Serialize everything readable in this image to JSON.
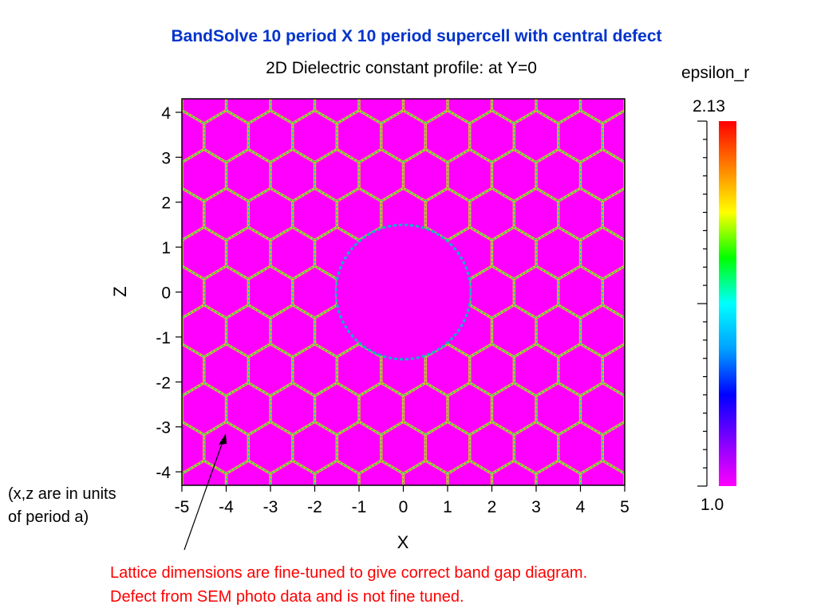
{
  "slide_title": "BandSolve 10 period X 10 period supercell with central defect",
  "annotations": {
    "units_note_line1": "(x,z are in units",
    "units_note_line2": "of period a)",
    "red_note_line1": "Lattice dimensions are fine-tuned to give correct band gap diagram.",
    "red_note_line2": "Defect from SEM photo data and is not fine tuned."
  },
  "colors": {
    "title": "#0033cc",
    "background_material": "#ff00ff",
    "note_red": "#ff0000"
  },
  "chart_data": {
    "type": "heatmap",
    "title": "2D Dielectric constant profile:  at Y=0",
    "xlabel": "X",
    "ylabel": "Z",
    "xlim": [
      -5,
      5
    ],
    "ylim": [
      -4.3,
      4.3
    ],
    "x_ticks": [
      "-5",
      "-4",
      "-3",
      "-2",
      "-1",
      "0",
      "1",
      "2",
      "3",
      "4",
      "5"
    ],
    "y_ticks": [
      "4",
      "3",
      "2",
      "1",
      "0",
      "-1",
      "-2",
      "-3",
      "-4"
    ],
    "colorbar": {
      "label": "epsilon_r",
      "max_label": "2.13",
      "min_label": "1.0",
      "min": 1.0,
      "max": 2.13,
      "gradient": [
        "#ff00ff",
        "#8000ff",
        "#0000ff",
        "#00a0ff",
        "#00ffff",
        "#00ff00",
        "#ffff00",
        "#ff8000",
        "#ff0000"
      ]
    },
    "lattice": {
      "pattern": "honeycomb",
      "period": 1.0,
      "defect_center": [
        0,
        0
      ],
      "defect_radius": 1.6
    }
  }
}
